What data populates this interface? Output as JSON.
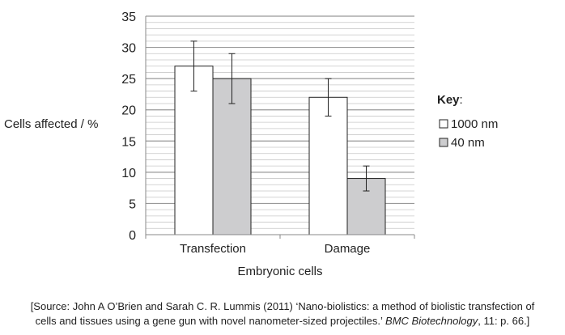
{
  "chart_data": {
    "type": "bar",
    "categories": [
      "Transfection",
      "Damage"
    ],
    "series": [
      {
        "name": "1000 nm",
        "values": [
          27,
          22
        ],
        "error": [
          4,
          3
        ],
        "color": "#ffffff"
      },
      {
        "name": "40 nm",
        "values": [
          25,
          9
        ],
        "error": [
          4,
          2
        ],
        "color": "#cdcdcf"
      }
    ],
    "xlabel": "Embryonic cells",
    "ylabel": "Cells affected / %",
    "ylim": [
      0,
      35
    ],
    "yticks": [
      0,
      5,
      10,
      15,
      20,
      25,
      30,
      35
    ],
    "grid": "major every 5, minor every 1",
    "legend": {
      "title": "Key",
      "title_suffix": ":",
      "placement": "right"
    }
  },
  "source": {
    "line1": "[Source: John A O’Brien and Sarah C. R. Lummis (2011) ‘Nano-biolistics: a method of biolistic transfection of",
    "line2_pre": "cells and tissues using a gene gun with novel nanometer-sized projectiles.’ ",
    "journal": "BMC Biotechnology",
    "line2_post": ", 11: p. 66.]"
  }
}
